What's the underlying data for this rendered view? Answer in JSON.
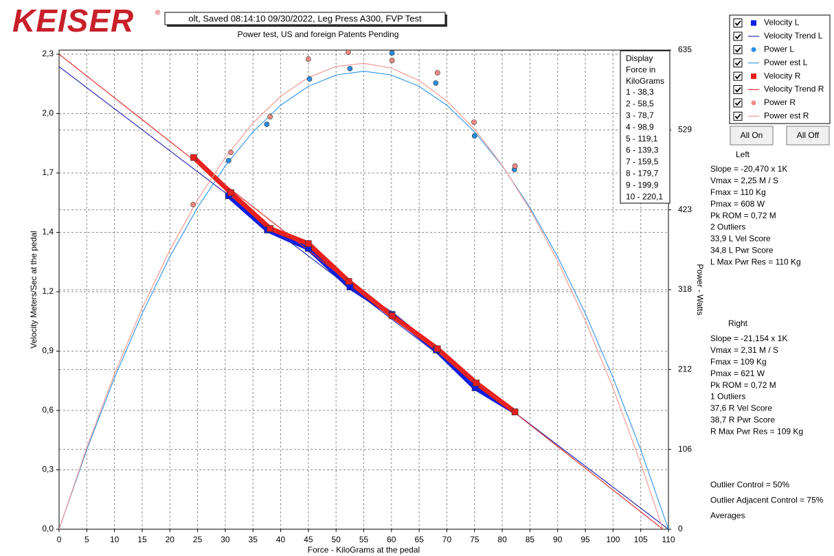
{
  "header": {
    "logo": "KEISER",
    "logo_mark": "®",
    "title": "olt, Saved  08:14:10 09/30/2022, Leg Press A300, FVP Test",
    "subtitle": "Power test, US and foreign Patents Pending"
  },
  "chart_data": {
    "type": "scatter",
    "x_label": "Force - KiloGrams at the pedal",
    "y_label": "Velocity Meters/Sec at the pedal",
    "y2_label": "Power - Watts",
    "xlim": [
      0,
      110
    ],
    "xticks": [
      0,
      5,
      10,
      15,
      20,
      25,
      30,
      35,
      40,
      45,
      50,
      55,
      60,
      65,
      70,
      75,
      80,
      85,
      90,
      95,
      100,
      105,
      110
    ],
    "ylim": [
      0,
      2.32
    ],
    "yticks": [
      {
        "value": 0,
        "label": "0,0"
      },
      {
        "value": 0.2875,
        "label": "0,3"
      },
      {
        "value": 0.575,
        "label": "0,6"
      },
      {
        "value": 0.8625,
        "label": "0,9"
      },
      {
        "value": 1.15,
        "label": "1,2"
      },
      {
        "value": 1.4375,
        "label": "1,4"
      },
      {
        "value": 1.725,
        "label": "1,7"
      },
      {
        "value": 2.0125,
        "label": "2,0"
      },
      {
        "value": 2.3,
        "label": "2,3"
      }
    ],
    "y2lim": [
      0,
      635
    ],
    "y2ticks": [
      0,
      {
        "value": 105.83,
        "label": "106"
      },
      {
        "value": 211.67,
        "label": "212"
      },
      {
        "value": 317.5,
        "label": "318"
      },
      {
        "value": 423.33,
        "label": "423"
      },
      {
        "value": 529.17,
        "label": "529"
      },
      635
    ],
    "grid": true,
    "series": [
      {
        "name": "Velocity L",
        "color": "#0a1ee0",
        "marker": "square",
        "mode": "markers+line",
        "axis": "y",
        "x": [
          30.6,
          37.6,
          45.0,
          52.5,
          60.1,
          68.1,
          75.1,
          82.3
        ],
        "values": [
          1.615,
          1.449,
          1.36,
          1.173,
          1.04,
          0.868,
          0.685,
          0.568
        ]
      },
      {
        "name": "Velocity Trend L",
        "color": "#2b2bb0",
        "mode": "line",
        "axis": "y",
        "x": [
          0,
          110
        ],
        "values": [
          2.24,
          0
        ]
      },
      {
        "name": "Power L",
        "color": "#2a8de0",
        "marker": "circle",
        "mode": "markers",
        "axis": "y2",
        "x": [
          30.6,
          37.5,
          45.2,
          52.5,
          60.1,
          68.0,
          75.0,
          82.2
        ],
        "values": [
          488.5,
          536.7,
          596.8,
          610.4,
          631.3,
          591.3,
          521.3,
          476.7
        ]
      },
      {
        "name": "Power est L",
        "color": "#3a9ae8",
        "mode": "line",
        "axis": "y2",
        "x": [
          0,
          5,
          10,
          15,
          20,
          25,
          30,
          35,
          40,
          45,
          50,
          55,
          60,
          65,
          70,
          75,
          80,
          85,
          90,
          95,
          100,
          105,
          110
        ],
        "values": [
          0,
          105.3,
          200.7,
          285.9,
          361.2,
          426.4,
          481.6,
          526.7,
          561.9,
          586.9,
          602.0,
          607.0,
          602.0,
          586.9,
          561.9,
          526.7,
          481.6,
          426.4,
          361.2,
          285.9,
          200.7,
          105.3,
          0
        ]
      },
      {
        "name": "Velocity R",
        "color": "#e8201c",
        "marker": "square",
        "mode": "markers+line",
        "axis": "y",
        "x": [
          24.3,
          31.0,
          38.1,
          45.0,
          52.3,
          60.1,
          68.3,
          75.3,
          82.3
        ],
        "values": [
          1.8,
          1.63,
          1.456,
          1.383,
          1.2,
          1.034,
          0.874,
          0.708,
          0.568
        ]
      },
      {
        "name": "Velocity Trend R",
        "color": "#e03030",
        "mode": "line",
        "axis": "y",
        "x": [
          0,
          109
        ],
        "values": [
          2.3,
          0
        ]
      },
      {
        "name": "Power R",
        "color": "#f08a84",
        "marker": "circle",
        "mode": "markers",
        "axis": "y2",
        "x": [
          24.2,
          31.0,
          38.1,
          45.0,
          52.2,
          60.1,
          68.3,
          74.9,
          82.3
        ],
        "values": [
          430.3,
          499.4,
          546.7,
          623.1,
          632.2,
          621.3,
          605.0,
          539.5,
          481.2
        ]
      },
      {
        "name": "Power est R",
        "color": "#f29a95",
        "mode": "line",
        "axis": "y2",
        "x": [
          0,
          5,
          10,
          15,
          20,
          25,
          30,
          35,
          40,
          45,
          50,
          55,
          60,
          65,
          70,
          75,
          80,
          85,
          90,
          95,
          100,
          105,
          109
        ],
        "values": [
          0,
          108.1,
          205.8,
          293.1,
          370.0,
          436.6,
          492.7,
          538.4,
          573.8,
          598.7,
          613.3,
          617.5,
          611.2,
          594.6,
          567.6,
          530.2,
          482.3,
          424.1,
          355.5,
          276.5,
          187.1,
          87.3,
          0
        ]
      }
    ],
    "force_table": {
      "title": [
        "Display",
        "Force in",
        "KiloGrams"
      ],
      "items": [
        "1 - 38,3",
        "2 - 58,5",
        "3 - 78,7",
        "4 - 98,9",
        "5 - 119,1",
        "6 - 139,3",
        "7 - 159,5",
        "8 - 179,7",
        "9 - 199,9",
        "10 - 220,1"
      ]
    }
  },
  "panel": {
    "buttons": [
      "All On",
      "All Off"
    ],
    "left_heading": "Left",
    "left_stats": [
      "Slope = -20,470 x 1K",
      "Vmax = 2,25 M / S",
      "Fmax =  110 Kg",
      "Pmax =  608 W",
      "Pk ROM = 0,72 M",
      "2 Outliers",
      "33,9 L Vel Score",
      "34,8 L Pwr Score",
      "L Max Pwr Res = 110 Kg"
    ],
    "right_heading": "Right",
    "right_stats": [
      "Slope = -21,154 x 1K",
      "Vmax = 2,31 M / S",
      "Fmax =  109 Kg",
      "Pmax =  621 W",
      "Pk ROM = 0,72 M",
      "1 Outliers",
      "37,6 R Vel Score",
      "38,7 R Pwr Score",
      "R Max Pwr Res = 109 Kg"
    ],
    "notes": [
      "Outlier Control = 50%",
      "Outlier Adjacent Control = 75%",
      "Averages"
    ]
  }
}
